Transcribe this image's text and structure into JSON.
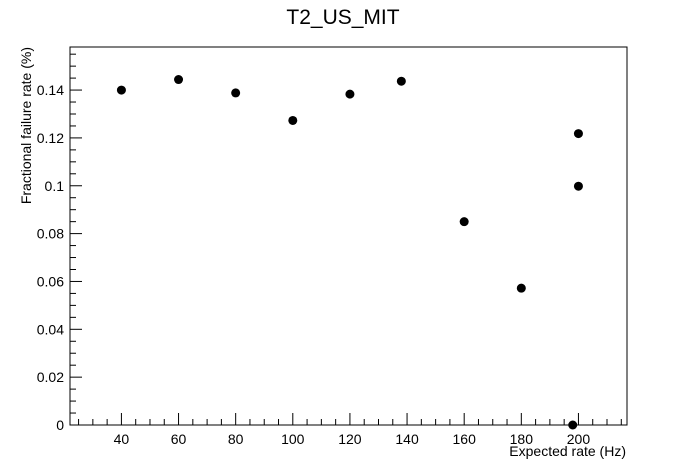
{
  "chart_data": {
    "type": "scatter",
    "title": "T2_US_MIT",
    "xlabel": "Expected rate (Hz)",
    "ylabel": "Fractional failure rate (%)",
    "xlim": [
      22,
      217
    ],
    "ylim": [
      0,
      0.158
    ],
    "x_ticks": [
      40,
      60,
      80,
      100,
      120,
      140,
      160,
      180,
      200
    ],
    "x_tick_labels": [
      "40",
      "60",
      "80",
      "100",
      "120",
      "140",
      "160",
      "180",
      "200"
    ],
    "y_ticks": [
      0,
      0.02,
      0.04,
      0.06,
      0.08,
      0.1,
      0.12,
      0.14
    ],
    "y_tick_labels": [
      "0",
      "0.02",
      "0.04",
      "0.06",
      "0.08",
      "0.1",
      "0.12",
      "0.14"
    ],
    "grid": false,
    "legend": "none",
    "marker_color": "#000000",
    "series": [
      {
        "points": [
          {
            "x": 40,
            "y": 0.14
          },
          {
            "x": 60,
            "y": 0.1444
          },
          {
            "x": 80,
            "y": 0.1388
          },
          {
            "x": 100,
            "y": 0.1273
          },
          {
            "x": 120,
            "y": 0.1383
          },
          {
            "x": 138,
            "y": 0.1437
          },
          {
            "x": 160,
            "y": 0.085
          },
          {
            "x": 180,
            "y": 0.0572
          },
          {
            "x": 198,
            "y": 0.0
          },
          {
            "x": 200,
            "y": 0.1218
          },
          {
            "x": 200,
            "y": 0.0998
          }
        ]
      }
    ]
  }
}
